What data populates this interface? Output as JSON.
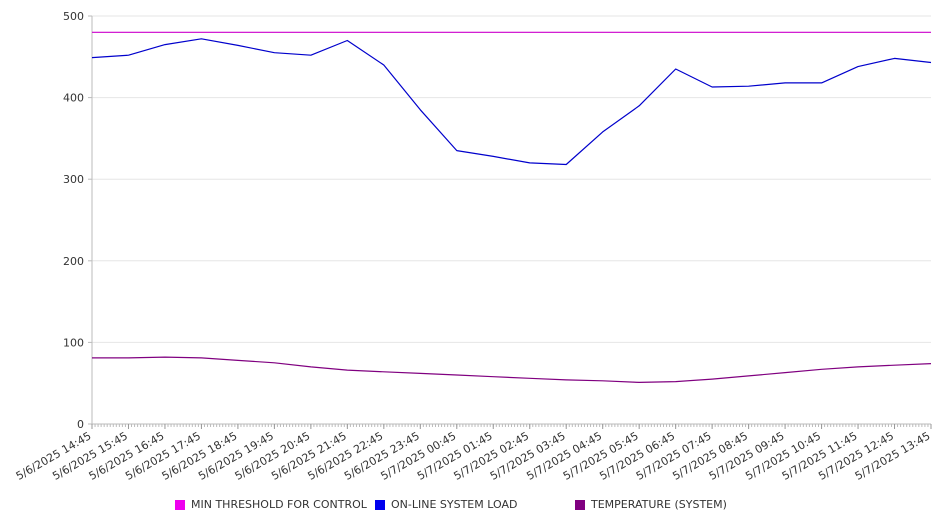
{
  "chart_data": {
    "type": "line",
    "title": "",
    "xlabel": "",
    "ylabel": "",
    "ylim": [
      0,
      500
    ],
    "yticks": [
      0,
      100,
      200,
      300,
      400,
      500
    ],
    "grid": "horizontal",
    "legend_position": "bottom",
    "x": [
      "5/6/2025 14:45",
      "5/6/2025 15:45",
      "5/6/2025 16:45",
      "5/6/2025 17:45",
      "5/6/2025 18:45",
      "5/6/2025 19:45",
      "5/6/2025 20:45",
      "5/6/2025 21:45",
      "5/6/2025 22:45",
      "5/6/2025 23:45",
      "5/7/2025 00:45",
      "5/7/2025 01:45",
      "5/7/2025 02:45",
      "5/7/2025 03:45",
      "5/7/2025 04:45",
      "5/7/2025 05:45",
      "5/7/2025 06:45",
      "5/7/2025 07:45",
      "5/7/2025 08:45",
      "5/7/2025 09:45",
      "5/7/2025 10:45",
      "5/7/2025 11:45",
      "5/7/2025 12:45",
      "5/7/2025 13:45"
    ],
    "series": [
      {
        "name": "MIN THRESHOLD FOR CONTROL",
        "color": "#cc00cc",
        "values": [
          480,
          480,
          480,
          480,
          480,
          480,
          480,
          480,
          480,
          480,
          480,
          480,
          480,
          480,
          480,
          480,
          480,
          480,
          480,
          480,
          480,
          480,
          480,
          480
        ]
      },
      {
        "name": "ON-LINE SYSTEM LOAD",
        "color": "#0000cc",
        "values": [
          449,
          452,
          465,
          472,
          464,
          455,
          452,
          470,
          440,
          385,
          335,
          328,
          320,
          318,
          358,
          390,
          435,
          413,
          414,
          418,
          418,
          438,
          448,
          443
        ]
      },
      {
        "name": "TEMPERATURE (SYSTEM)",
        "color": "#800080",
        "values": [
          81,
          81,
          82,
          81,
          78,
          75,
          70,
          66,
          64,
          62,
          60,
          58,
          56,
          54,
          53,
          51,
          52,
          55,
          59,
          63,
          67,
          70,
          72,
          74
        ]
      }
    ]
  }
}
